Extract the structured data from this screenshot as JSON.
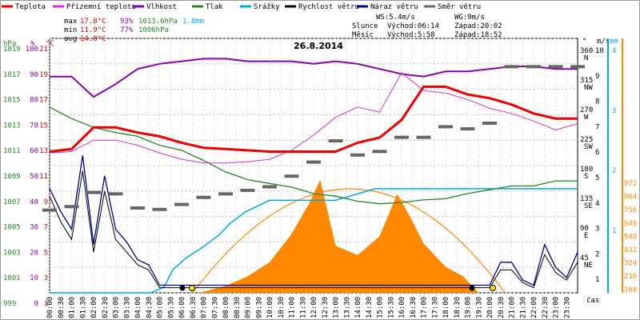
{
  "chart_data": {
    "type": "line",
    "title": "26.8.2014",
    "legend": [
      {
        "name": "Teplota",
        "color": "#ee0000"
      },
      {
        "name": "Přízemní teplota",
        "color": "#cc33cc"
      },
      {
        "name": "Vlhkost",
        "color": "#8800aa"
      },
      {
        "name": "Tlak",
        "color": "#228822"
      },
      {
        "name": "Srážky",
        "color": "#00aadd"
      },
      {
        "name": "Rychlost větru",
        "color": "#000000"
      },
      {
        "name": "Náraz větru",
        "color": "#000088"
      },
      {
        "name": "Směr větru",
        "color": "#666666"
      }
    ],
    "stats": {
      "max": {
        "label": "max",
        "temp": "17.8°C",
        "hum": "93%",
        "press": "1013.6hPa",
        "rain": "1.8mm"
      },
      "min": {
        "label": "min",
        "temp": "11.9°C",
        "hum": "77%",
        "press": "1006hPa"
      },
      "avg": {
        "label": "avg",
        "temp": "14.8°C"
      }
    },
    "wind_info": {
      "ws": "WS:5.4m/s",
      "wg": "WG:9m/s"
    },
    "sun": {
      "label": "Slunce",
      "rise": "Východ:06:14",
      "set": "Západ:20:02"
    },
    "moon": {
      "label": "Měsíc",
      "rise": "Východ:5:58",
      "set": "Západ:18:52"
    },
    "axes": {
      "hpa": {
        "unit": "hPa",
        "ticks": [
          "1019",
          "1017",
          "1015",
          "1013",
          "1011",
          "1009",
          "1007",
          "1005",
          "1003",
          "1001",
          "999"
        ]
      },
      "pct": {
        "unit": "%",
        "ticks": [
          "100",
          "90",
          "80",
          "70",
          "60",
          "50",
          "40",
          "30",
          "20",
          "10",
          "0"
        ]
      },
      "degc": {
        "unit": "°C",
        "ticks": [
          "21",
          "19",
          "17",
          "15",
          "13",
          "11",
          "9",
          "7",
          "5",
          "3",
          "1"
        ]
      },
      "dir": {
        "unit": "°",
        "ticks": [
          "360",
          "315",
          "270",
          "225",
          "180",
          "135",
          "90",
          "45",
          ""
        ],
        "labels": [
          "N",
          "NW",
          "W",
          "SW",
          "S",
          "SE",
          "E",
          "NE",
          ""
        ]
      },
      "ms": {
        "unit": "m/s",
        "ticks": [
          "10",
          "9",
          "8",
          "7",
          "6",
          "5",
          "4",
          "3",
          "2",
          "1"
        ]
      },
      "mm": {
        "unit": "mm",
        "ticks": [
          "4",
          "3",
          "2",
          "1"
        ]
      },
      "sol": {
        "ticks": [
          "972",
          "864",
          "756",
          "648",
          "540",
          "432",
          "324",
          "216",
          "108"
        ]
      },
      "x_label": "čas",
      "x_ticks": [
        "00:00",
        "00:30",
        "01:00",
        "01:30",
        "02:00",
        "02:30",
        "03:00",
        "03:30",
        "04:00",
        "04:30",
        "05:00",
        "05:30",
        "06:00",
        "06:30",
        "07:00",
        "07:30",
        "08:00",
        "08:30",
        "09:00",
        "09:30",
        "10:00",
        "10:30",
        "11:00",
        "11:30",
        "12:00",
        "12:30",
        "13:00",
        "13:30",
        "14:00",
        "14:30",
        "15:00",
        "15:30",
        "16:00",
        "16:30",
        "17:00",
        "17:30",
        "18:00",
        "18:30",
        "19:00",
        "19:30",
        "20:00",
        "20:30",
        "21:00",
        "21:30",
        "22:00",
        "22:30",
        "23:00",
        "23:30"
      ]
    },
    "series": {
      "temperature": {
        "x": [
          0,
          1,
          2,
          3,
          4,
          5,
          6,
          7,
          8,
          9,
          10,
          11,
          12,
          13,
          14,
          15,
          16,
          17,
          18,
          19,
          20,
          21,
          22,
          23,
          24
        ],
        "y": [
          12.1,
          12.3,
          14.0,
          14.0,
          13.6,
          13.3,
          12.8,
          12.4,
          12.3,
          12.2,
          12.1,
          12.1,
          12.1,
          12.1,
          12.8,
          13.2,
          14.6,
          17.2,
          17.2,
          16.6,
          16.3,
          15.8,
          15.1,
          14.7,
          14.7
        ]
      },
      "ground_temperature": {
        "x": [
          0,
          1,
          2,
          3,
          4,
          5,
          6,
          7,
          8,
          9,
          10,
          11,
          12,
          13,
          14,
          15,
          16,
          17,
          18,
          19,
          20,
          21,
          22,
          23,
          24
        ],
        "y": [
          12.0,
          12.1,
          13.0,
          13.0,
          12.6,
          12.0,
          11.5,
          11.2,
          11.2,
          11.3,
          11.5,
          12.2,
          13.4,
          14.8,
          15.6,
          15.2,
          18.3,
          16.9,
          16.7,
          16.2,
          15.5,
          15.1,
          14.5,
          13.8,
          14.3
        ]
      },
      "humidity": {
        "x": [
          0,
          1,
          2,
          3,
          4,
          5,
          6,
          7,
          8,
          9,
          10,
          11,
          12,
          13,
          14,
          15,
          16,
          17,
          18,
          19,
          20,
          21,
          22,
          23,
          24
        ],
        "y": [
          85,
          85,
          77,
          82,
          88,
          90,
          91,
          92,
          92,
          91,
          91,
          91,
          90,
          91,
          90,
          88,
          86,
          85,
          87,
          87,
          88,
          89,
          89,
          88,
          88
        ]
      },
      "pressure": {
        "x": [
          0,
          1,
          2,
          3,
          4,
          5,
          6,
          7,
          8,
          9,
          10,
          11,
          12,
          13,
          14,
          15,
          16,
          17,
          18,
          19,
          20,
          21,
          22,
          23,
          24
        ],
        "y": [
          1013.6,
          1012.7,
          1012.0,
          1011.6,
          1011.3,
          1010.6,
          1010.2,
          1009.4,
          1008.5,
          1007.9,
          1007.6,
          1007.3,
          1006.8,
          1006.6,
          1006.2,
          1006.0,
          1006.1,
          1006.3,
          1006.4,
          1006.8,
          1007.1,
          1007.4,
          1007.4,
          1007.8,
          1007.8
        ]
      },
      "rain_cumulative": {
        "x": [
          0,
          4.6,
          5.2,
          5.6,
          6.2,
          7.0,
          7.7,
          8.2,
          8.9,
          10.0,
          13.0,
          14.8,
          16.0,
          24
        ],
        "y": [
          0,
          0,
          0.1,
          0.4,
          0.6,
          0.8,
          1.0,
          1.2,
          1.4,
          1.6,
          1.6,
          1.8,
          1.8,
          1.8
        ]
      },
      "wind_speed": {
        "x": [
          0,
          0.5,
          1.0,
          1.5,
          2.0,
          2.5,
          3.0,
          3.5,
          4.0,
          4.5,
          5.0,
          20.0,
          20.5,
          21.0,
          21.5,
          22.0,
          22.5,
          23.0,
          23.5,
          24
        ],
        "y": [
          3.8,
          2.8,
          2.1,
          4.8,
          1.6,
          4.0,
          2.1,
          1.6,
          1.1,
          0.9,
          0.2,
          0.2,
          0.9,
          0.9,
          0.4,
          0.2,
          1.5,
          0.8,
          0.5,
          1.2
        ]
      },
      "wind_gust": {
        "x": [
          0,
          0.5,
          1.0,
          1.5,
          2.0,
          2.5,
          3.0,
          3.5,
          4.0,
          4.5,
          5.0,
          20.0,
          20.5,
          21.0,
          21.5,
          22.0,
          22.5,
          23.0,
          23.5,
          24
        ],
        "y": [
          4.1,
          3.2,
          2.5,
          5.4,
          1.9,
          4.6,
          2.5,
          2.0,
          1.3,
          1.1,
          0.3,
          0.3,
          1.2,
          1.2,
          0.5,
          0.3,
          1.9,
          1.0,
          0.6,
          1.6
        ]
      },
      "wind_direction": {
        "x": [
          0,
          1,
          2,
          3,
          4,
          5,
          6,
          7,
          8,
          9,
          10,
          11,
          12,
          13,
          14,
          15,
          16,
          17,
          18,
          19,
          20,
          21,
          22,
          23,
          24
        ],
        "y": [
          117,
          122,
          142,
          140,
          120,
          118,
          125,
          135,
          140,
          145,
          150,
          165,
          185,
          215,
          195,
          200,
          220,
          220,
          235,
          232,
          240,
          320,
          320,
          320,
          320
        ]
      },
      "solar": {
        "x": [
          6.8,
          8,
          9,
          10,
          11,
          11.8,
          12.3,
          13,
          14,
          15,
          15.8,
          16.4,
          17,
          18,
          18.8,
          19.5
        ],
        "y": [
          0,
          30,
          70,
          130,
          250,
          380,
          480,
          200,
          160,
          240,
          420,
          320,
          210,
          110,
          70,
          0
        ]
      }
    }
  }
}
